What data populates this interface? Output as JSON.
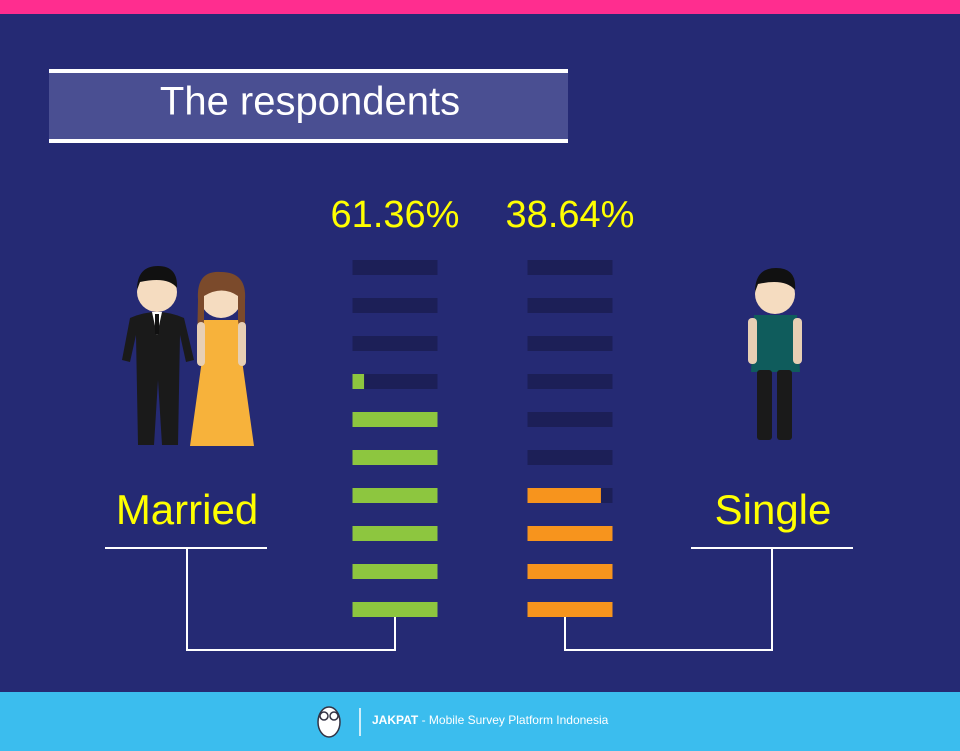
{
  "chart_data": {
    "type": "bar",
    "title": "The respondents",
    "categories": [
      "Married",
      "Single"
    ],
    "values": [
      61.36,
      38.64
    ],
    "value_labels": [
      "61.36%",
      "38.64%"
    ],
    "colors": [
      "#8dc63f",
      "#f7941d"
    ],
    "ylim": [
      0,
      100
    ]
  },
  "footer": {
    "brand": "JAKPAT",
    "tagline": " - Mobile Survey Platform Indonesia"
  }
}
